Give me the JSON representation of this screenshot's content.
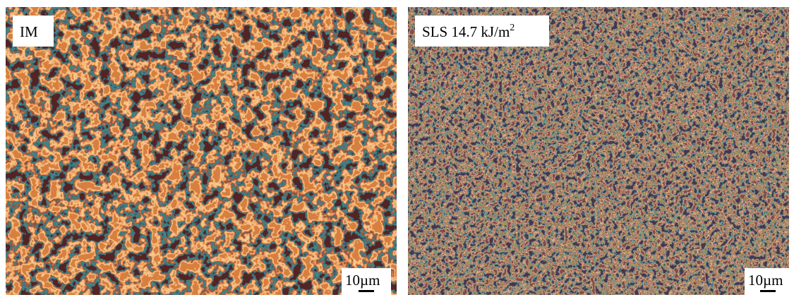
{
  "panels": [
    {
      "label": {
        "text": "IM"
      },
      "scale_bar": "10µm"
    },
    {
      "label": {
        "text": "SLS 14.7 kJ/m",
        "superscript": "2"
      },
      "scale_bar": "10µm"
    }
  ]
}
